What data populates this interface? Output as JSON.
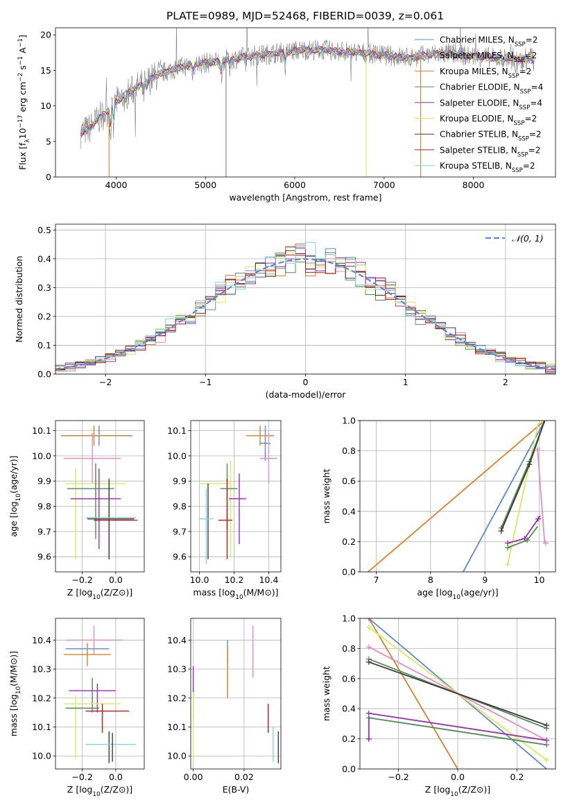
{
  "figure": {
    "title": "PLATE=0989, MJD=52468, FIBERID=0039, z=0.061"
  },
  "colors": {
    "Chabrier MILES": "#5b87d6",
    "Salpeter MILES": "#e88bbd",
    "Kroupa MILES": "#dd7f28",
    "Chabrier ELODIE": "#4f8a55",
    "Salpeter ELODIE": "#9b2fb0",
    "Kroupa ELODIE": "#d4ec58",
    "Chabrier STELIB": "#3a3a3a",
    "Salpeter STELIB": "#c01818",
    "Kroupa STELIB": "#7fd5d8",
    "data": "#7f7f7f",
    "normal": "#5b87d6"
  },
  "chart_data": [
    {
      "id": "spectrum",
      "type": "line",
      "xlabel": "wavelength [Angstrom, rest frame]",
      "ylabel": "Flux [f_λ10^-17 erg cm^-2 s^-1 A^-1]",
      "xlim": [
        3320,
        8920
      ],
      "ylim": [
        0,
        21
      ],
      "xticks": [
        4000,
        5000,
        6000,
        7000,
        8000
      ],
      "yticks": [
        0,
        5,
        10,
        15,
        20
      ],
      "grid": false,
      "legend_position": "right",
      "continuum": {
        "x": [
          3600,
          3700,
          3800,
          3900,
          4000,
          4100,
          4200,
          4300,
          4400,
          4500,
          4700,
          4900,
          5100,
          5300,
          5500,
          5700,
          5900,
          6100,
          6300,
          6500,
          6700,
          6900,
          7100,
          7300,
          7500,
          7700,
          7900,
          8100,
          8300,
          8500,
          8680
        ],
        "y": [
          6.2,
          6.8,
          8.2,
          9.2,
          10.5,
          11.5,
          12.3,
          13.2,
          13.9,
          14.6,
          15.4,
          15.9,
          16.2,
          16.6,
          17.0,
          17.3,
          17.6,
          17.9,
          17.9,
          17.7,
          17.5,
          17.3,
          17.0,
          16.8,
          17.2,
          17.4,
          17.1,
          16.9,
          16.7,
          16.6,
          16.5
        ]
      },
      "legend": [
        {
          "series": "Chabrier MILES",
          "prefix": "Chabrier MILES, N",
          "n": "2"
        },
        {
          "series": "Salpeter MILES",
          "prefix": "Salpeter MILES, N",
          "n": "2"
        },
        {
          "series": "Kroupa MILES",
          "prefix": "Kroupa MILES, N",
          "n": "2"
        },
        {
          "series": "Chabrier ELODIE",
          "prefix": "Chabrier ELODIE, N",
          "n": "4"
        },
        {
          "series": "Salpeter ELODIE",
          "prefix": "Salpeter ELODIE, N",
          "n": "4"
        },
        {
          "series": "Kroupa ELODIE",
          "prefix": "Kroupa ELODIE, N",
          "n": "2"
        },
        {
          "series": "Chabrier STELIB",
          "prefix": "Chabrier STELIB, N",
          "n": "2"
        },
        {
          "series": "Salpeter STELIB",
          "prefix": "Salpeter STELIB, N",
          "n": "2"
        },
        {
          "series": "Kroupa STELIB",
          "prefix": "Kroupa STELIB, N",
          "n": "2"
        }
      ],
      "ssp_subscript": "SSP"
    },
    {
      "id": "residuals",
      "type": "line",
      "xlabel": "(data-model)/error",
      "ylabel": "Normed distribution",
      "xlim": [
        -2.5,
        2.5
      ],
      "ylim": [
        0,
        0.52
      ],
      "xticks": [
        -2,
        -1,
        0,
        1,
        2
      ],
      "yticks": [
        0.0,
        0.1,
        0.2,
        0.3,
        0.4,
        0.5
      ],
      "grid": true,
      "bin_width": 0.1,
      "legend": "𝒩(0, 1)",
      "legend_position": "top-right"
    },
    {
      "id": "age-vs-Z",
      "type": "scatter",
      "xlabel": "Z [log10(Z/Z⊙)]",
      "ylabel": "age  [log10(age/yr)]",
      "xlim": [
        -0.36,
        0.17
      ],
      "ylim": [
        9.54,
        10.14
      ],
      "xticks": [
        -0.2,
        0.0
      ],
      "yticks": [
        9.6,
        9.7,
        9.8,
        9.9,
        10.0,
        10.1
      ],
      "grid": true,
      "points": [
        {
          "series": "Chabrier MILES",
          "x": -0.1,
          "xerr": 0.2,
          "y": 10.08,
          "yerr": 0.04
        },
        {
          "series": "Kroupa MILES",
          "x": -0.13,
          "xerr": 0.2,
          "y": 10.08,
          "yerr": 0.04
        },
        {
          "series": "Salpeter MILES",
          "x": -0.14,
          "xerr": 0.17,
          "y": 9.99,
          "yerr": 0.1
        },
        {
          "series": "Kroupa ELODIE",
          "x": -0.12,
          "xerr": 0.18,
          "y": 9.89,
          "yerr": 0.06
        },
        {
          "series": "Kroupa ELODIE",
          "x": -0.24,
          "xerr": 0.0,
          "y": 9.77,
          "yerr": 0.18
        },
        {
          "series": "Chabrier ELODIE",
          "x": -0.15,
          "xerr": 0.14,
          "y": 9.87,
          "yerr": 0.0
        },
        {
          "series": "Chabrier ELODIE",
          "x": -0.12,
          "xerr": 0.0,
          "y": 9.82,
          "yerr": 0.15
        },
        {
          "series": "Salpeter ELODIE",
          "x": -0.12,
          "xerr": 0.15,
          "y": 9.83,
          "yerr": 0.0
        },
        {
          "series": "Salpeter ELODIE",
          "x": -0.1,
          "xerr": 0.0,
          "y": 9.79,
          "yerr": 0.16
        },
        {
          "series": "Salpeter ELODIE",
          "x": -0.04,
          "xerr": 0.0,
          "y": 9.74,
          "yerr": 0.15
        },
        {
          "series": "Chabrier STELIB",
          "x": -0.03,
          "xerr": 0.14,
          "y": 9.75,
          "yerr": 0.0
        },
        {
          "series": "Chabrier STELIB",
          "x": -0.04,
          "xerr": 0.0,
          "y": 9.75,
          "yerr": 0.16
        },
        {
          "series": "Salpeter STELIB",
          "x": 0.0,
          "xerr": 0.13,
          "y": 9.745,
          "yerr": 0.0
        },
        {
          "series": "Kroupa STELIB",
          "x": -0.03,
          "xerr": 0.15,
          "y": 9.755,
          "yerr": 0.0
        }
      ]
    },
    {
      "id": "age-vs-mass",
      "type": "scatter",
      "xlabel": "mass [log10(M/M⊙)]",
      "ylabel": "",
      "xlim": [
        9.95,
        10.47
      ],
      "ylim": [
        9.54,
        10.14
      ],
      "xticks": [
        10.0,
        10.2,
        10.4
      ],
      "yticks": [
        9.6,
        9.7,
        9.8,
        9.9,
        10.0,
        10.1
      ],
      "grid": true,
      "points": [
        {
          "series": "Chabrier MILES",
          "x": 10.38,
          "xerr": 0.03,
          "y": 10.05,
          "yerr": 0.07
        },
        {
          "series": "Kroupa MILES",
          "x": 10.35,
          "xerr": 0.08,
          "y": 10.08,
          "yerr": 0.04
        },
        {
          "series": "Salpeter MILES",
          "x": 10.4,
          "xerr": 0.05,
          "y": 9.99,
          "yerr": 0.1
        },
        {
          "series": "Kroupa ELODIE",
          "x": 10.09,
          "xerr": 0.09,
          "y": 9.89,
          "yerr": 0.0
        },
        {
          "series": "Kroupa ELODIE",
          "x": 10.18,
          "xerr": 0.0,
          "y": 9.79,
          "yerr": 0.19
        },
        {
          "series": "Chabrier ELODIE",
          "x": 10.17,
          "xerr": 0.05,
          "y": 9.87,
          "yerr": 0.0
        },
        {
          "series": "Chabrier ELODIE",
          "x": 10.16,
          "xerr": 0.0,
          "y": 9.84,
          "yerr": 0.13
        },
        {
          "series": "Salpeter ELODIE",
          "x": 10.22,
          "xerr": 0.05,
          "y": 9.83,
          "yerr": 0.0
        },
        {
          "series": "Salpeter ELODIE",
          "x": 10.23,
          "xerr": 0.0,
          "y": 9.79,
          "yerr": 0.14
        },
        {
          "series": "Chabrier STELIB",
          "x": 10.05,
          "xerr": 0.0,
          "y": 9.74,
          "yerr": 0.15
        },
        {
          "series": "Salpeter STELIB",
          "x": 10.16,
          "xerr": 0.0,
          "y": 9.75,
          "yerr": 0.16
        },
        {
          "series": "Salpeter STELIB",
          "x": 10.15,
          "xerr": 0.04,
          "y": 9.745,
          "yerr": 0.0
        },
        {
          "series": "Kroupa STELIB",
          "x": 10.04,
          "xerr": 0.04,
          "y": 9.75,
          "yerr": 0.0
        },
        {
          "series": "Kroupa STELIB",
          "x": 10.04,
          "xerr": 0.0,
          "y": 9.72,
          "yerr": 0.15
        }
      ]
    },
    {
      "id": "mass-weight-vs-age",
      "type": "line",
      "xlabel": "age  [log10(age/yr)]",
      "ylabel": "mass weight",
      "xlim": [
        6.7,
        10.3
      ],
      "ylim": [
        0,
        1
      ],
      "xticks": [
        7,
        8,
        9,
        10
      ],
      "yticks": [
        0.0,
        0.2,
        0.4,
        0.6,
        0.8,
        1.0
      ],
      "grid": true,
      "series": [
        {
          "name": "Kroupa MILES",
          "x": [
            6.85,
            10.1
          ],
          "y": [
            0.0,
            1.0
          ],
          "markers": [
            10.1
          ]
        },
        {
          "name": "Chabrier MILES",
          "x": [
            8.6,
            10.1
          ],
          "y": [
            0.0,
            1.0
          ],
          "markers": []
        },
        {
          "name": "Kroupa ELODIE",
          "x": [
            9.42,
            9.98,
            10.1
          ],
          "y": [
            0.05,
            0.98,
            1.0
          ],
          "markers": [
            9.42
          ]
        },
        {
          "name": "Chabrier ELODIE",
          "x": [
            9.3,
            9.82,
            10.1
          ],
          "y": [
            0.29,
            0.73,
            1.0
          ],
          "markers": [
            9.3,
            9.82
          ]
        },
        {
          "name": "Chabrier STELIB",
          "x": [
            9.3,
            9.82,
            10.1
          ],
          "y": [
            0.27,
            0.71,
            1.0
          ],
          "markers": [
            9.3,
            9.82
          ]
        },
        {
          "name": "Salpeter MILES",
          "x": [
            9.97,
            10.1,
            10.12
          ],
          "y": [
            0.81,
            0.19,
            0.19
          ],
          "markers": [
            9.97,
            10.12
          ]
        },
        {
          "name": "Salpeter ELODIE",
          "x": [
            9.42,
            9.73,
            9.98,
            10.02
          ],
          "y": [
            0.19,
            0.22,
            0.35,
            0.37
          ],
          "markers": [
            9.42,
            9.73,
            9.98
          ]
        },
        {
          "name": "Chabrier ELODIE",
          "x": [
            9.42,
            9.78,
            9.97
          ],
          "y": [
            0.16,
            0.21,
            0.3
          ],
          "markers": [
            9.42,
            9.78
          ]
        }
      ]
    },
    {
      "id": "mass-vs-Z",
      "type": "scatter",
      "xlabel": "Z [log10(Z/Z⊙)]",
      "ylabel": "mass [log10(M/M⊙)]",
      "xlim": [
        -0.36,
        0.17
      ],
      "ylim": [
        9.955,
        10.475
      ],
      "xticks": [
        -0.2,
        0.0
      ],
      "yticks": [
        10.0,
        10.1,
        10.2,
        10.3,
        10.4
      ],
      "grid": true,
      "points": [
        {
          "series": "Salpeter MILES",
          "x": -0.13,
          "xerr": 0.17,
          "y": 10.4,
          "yerr": 0.05
        },
        {
          "series": "Chabrier MILES",
          "x": -0.17,
          "xerr": 0.13,
          "y": 10.37,
          "yerr": 0.0
        },
        {
          "series": "Kroupa MILES",
          "x": -0.17,
          "xerr": 0.14,
          "y": 10.35,
          "yerr": 0.04
        },
        {
          "series": "Chabrier ELODIE",
          "x": -0.14,
          "xerr": 0.0,
          "y": 10.21,
          "yerr": 0.06
        },
        {
          "series": "Salpeter ELODIE",
          "x": -0.14,
          "xerr": 0.14,
          "y": 10.225,
          "yerr": 0.0
        },
        {
          "series": "Salpeter ELODIE",
          "x": -0.11,
          "xerr": 0.0,
          "y": 10.2,
          "yerr": 0.05
        },
        {
          "series": "Kroupa ELODIE",
          "x": -0.14,
          "xerr": 0.17,
          "y": 10.18,
          "yerr": 0.0
        },
        {
          "series": "Kroupa ELODIE",
          "x": -0.24,
          "xerr": 0.0,
          "y": 10.1,
          "yerr": 0.11
        },
        {
          "series": "Chabrier ELODIE",
          "x": -0.2,
          "xerr": 0.1,
          "y": 10.165,
          "yerr": 0.0
        },
        {
          "series": "Salpeter STELIB",
          "x": -0.05,
          "xerr": 0.13,
          "y": 10.155,
          "yerr": 0.0
        },
        {
          "series": "Salpeter STELIB",
          "x": -0.08,
          "xerr": 0.0,
          "y": 10.13,
          "yerr": 0.05
        },
        {
          "series": "Chabrier STELIB",
          "x": -0.04,
          "xerr": 0.0,
          "y": 10.03,
          "yerr": 0.055
        },
        {
          "series": "Kroupa STELIB",
          "x": -0.03,
          "xerr": 0.15,
          "y": 10.04,
          "yerr": 0.0
        },
        {
          "series": "Chabrier STELIB",
          "x": -0.02,
          "xerr": 0.0,
          "y": 10.03,
          "yerr": 0.05
        }
      ]
    },
    {
      "id": "mass-vs-EBV",
      "type": "scatter",
      "xlabel": "E(B-V)",
      "ylabel": "",
      "xlim": [
        -0.001,
        0.0345
      ],
      "ylim": [
        9.955,
        10.475
      ],
      "xticks": [
        0.0,
        0.02
      ],
      "yticks": [
        10.0,
        10.1,
        10.2,
        10.3,
        10.4
      ],
      "grid": true,
      "points": [
        {
          "series": "Salpeter ELODIE",
          "x": 0.0,
          "xerr": 0.0,
          "y": 10.22,
          "yerr": 0.09
        },
        {
          "series": "Kroupa ELODIE",
          "x": 0.0,
          "xerr": 0.0,
          "y": 10.1,
          "yerr": 0.12
        },
        {
          "series": "Chabrier MILES",
          "x": 0.0135,
          "xerr": 0.0,
          "y": 10.36,
          "yerr": 0.04
        },
        {
          "series": "Kroupa MILES",
          "x": 0.0135,
          "xerr": 0.0,
          "y": 10.29,
          "yerr": 0.09
        },
        {
          "series": "Salpeter MILES",
          "x": 0.0235,
          "xerr": 0.0,
          "y": 10.36,
          "yerr": 0.09
        },
        {
          "series": "Salpeter STELIB",
          "x": 0.0295,
          "xerr": 0.0,
          "y": 10.13,
          "yerr": 0.05
        },
        {
          "series": "Kroupa STELIB",
          "x": 0.0315,
          "xerr": 0.0,
          "y": 10.04,
          "yerr": 0.06
        },
        {
          "series": "Chabrier STELIB",
          "x": 0.0335,
          "xerr": 0.0,
          "y": 10.03,
          "yerr": 0.055
        }
      ]
    },
    {
      "id": "mass-weight-vs-Z",
      "type": "line",
      "xlabel": "Z [log10(Z/Z⊙)]",
      "ylabel": "mass weight",
      "xlim": [
        -0.33,
        0.33
      ],
      "ylim": [
        0,
        1
      ],
      "xticks": [
        -0.2,
        0.0,
        0.2
      ],
      "yticks": [
        0.0,
        0.2,
        0.4,
        0.6,
        0.8,
        1.0
      ],
      "grid": true,
      "series": [
        {
          "name": "Kroupa MILES",
          "x": [
            -0.3,
            0.0
          ],
          "y": [
            1.0,
            0.0
          ],
          "markers": [
            -0.3
          ]
        },
        {
          "name": "Chabrier MILES",
          "x": [
            -0.3,
            0.3
          ],
          "y": [
            1.0,
            0.0
          ],
          "markers": []
        },
        {
          "name": "Kroupa ELODIE",
          "x": [
            -0.3,
            0.3
          ],
          "y": [
            0.94,
            0.06
          ],
          "markers": [
            -0.3,
            0.3
          ]
        },
        {
          "name": "Salpeter MILES",
          "x": [
            -0.3,
            0.3
          ],
          "y": [
            0.81,
            0.19
          ],
          "markers": [
            -0.3,
            0.3
          ]
        },
        {
          "name": "Chabrier ELODIE",
          "x": [
            -0.3,
            0.3
          ],
          "y": [
            0.73,
            0.27
          ],
          "markers": [
            -0.3,
            0.3
          ]
        },
        {
          "name": "Chabrier STELIB",
          "x": [
            -0.3,
            0.3
          ],
          "y": [
            0.71,
            0.29
          ],
          "markers": [
            -0.3,
            0.3
          ]
        },
        {
          "name": "Salpeter ELODIE",
          "x": [
            -0.3,
            0.3
          ],
          "y": [
            0.37,
            0.19
          ],
          "markers": [
            -0.3,
            0.3
          ]
        },
        {
          "name": "Chabrier ELODIE",
          "x": [
            -0.3,
            0.3
          ],
          "y": [
            0.34,
            0.16
          ],
          "markers": [
            -0.3,
            0.3
          ]
        },
        {
          "name": "Salpeter ELODIE",
          "x": [
            -0.3,
            -0.3,
            -0.3,
            -0.3,
            -0.3
          ],
          "y": [
            0.2,
            0.22,
            0.25,
            0.3,
            0.35
          ],
          "markers": [
            -0.3,
            -0.3,
            -0.3,
            -0.3,
            -0.3
          ]
        }
      ]
    }
  ]
}
